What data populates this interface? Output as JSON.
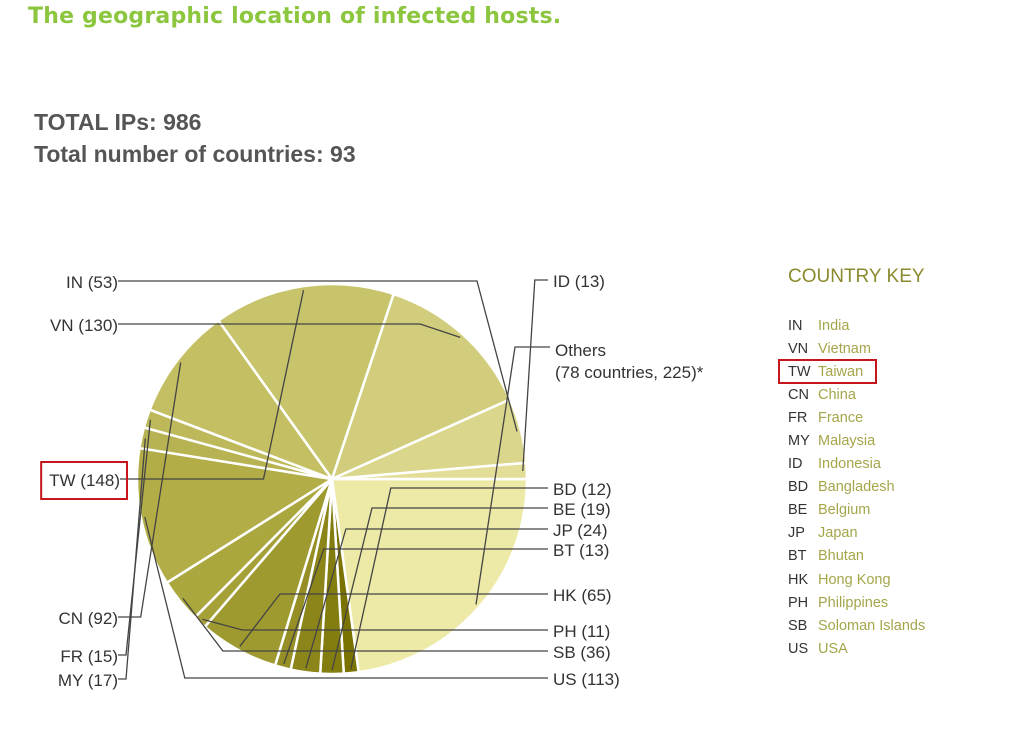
{
  "heading": "The geographic location of infected hosts.",
  "totals": {
    "ips": "TOTAL IPs: 986",
    "countries": "Total number of countries: 93"
  },
  "chart_data": {
    "type": "pie",
    "total": 986,
    "slices": [
      {
        "code": "Others",
        "label": "Others",
        "label2": "(78 countries, 225)*",
        "value": 225,
        "color": "#ede9a7"
      },
      {
        "code": "BD",
        "label": "BD (12)",
        "value": 12,
        "color": "#7a7302"
      },
      {
        "code": "BE",
        "label": "BE (19)",
        "value": 19,
        "color": "#837c0f"
      },
      {
        "code": "JP",
        "label": "JP (24)",
        "value": 24,
        "color": "#8c8519"
      },
      {
        "code": "BT",
        "label": "BT (13)",
        "value": 13,
        "color": "#958f25"
      },
      {
        "code": "HK",
        "label": "HK (65)",
        "value": 65,
        "color": "#9e9a2f"
      },
      {
        "code": "PH",
        "label": "PH (11)",
        "value": 11,
        "color": "#a5a138"
      },
      {
        "code": "SB",
        "label": "SB (36)",
        "value": 36,
        "color": "#aba73f"
      },
      {
        "code": "US",
        "label": "US (113)",
        "value": 113,
        "color": "#b2ad47"
      },
      {
        "code": "MY",
        "label": "MY (17)",
        "value": 17,
        "color": "#b8b352"
      },
      {
        "code": "FR",
        "label": "FR (15)",
        "value": 15,
        "color": "#bdb95b"
      },
      {
        "code": "CN",
        "label": "CN (92)",
        "value": 92,
        "color": "#c3bf62"
      },
      {
        "code": "TW",
        "label": "TW (148)",
        "value": 148,
        "color": "#c8c46c"
      },
      {
        "code": "VN",
        "label": "VN (130)",
        "value": 130,
        "color": "#d1cd7c"
      },
      {
        "code": "IN",
        "label": "IN (53)",
        "value": 53,
        "color": "#dad68b"
      },
      {
        "code": "ID",
        "label": "ID (13)",
        "value": 13,
        "color": "#e3de97"
      }
    ],
    "highlighted": "TW",
    "legend_placement": "right"
  },
  "key": {
    "title": "COUNTRY KEY",
    "items": [
      {
        "code": "IN",
        "name": "India"
      },
      {
        "code": "VN",
        "name": "Vietnam"
      },
      {
        "code": "TW",
        "name": "Taiwan"
      },
      {
        "code": "CN",
        "name": "China"
      },
      {
        "code": "FR",
        "name": "France"
      },
      {
        "code": "MY",
        "name": "Malaysia"
      },
      {
        "code": "ID",
        "name": "Indonesia"
      },
      {
        "code": "BD",
        "name": "Bangladesh"
      },
      {
        "code": "BE",
        "name": "Belgium"
      },
      {
        "code": "JP",
        "name": "Japan"
      },
      {
        "code": "BT",
        "name": "Bhutan"
      },
      {
        "code": "HK",
        "name": "Hong Kong"
      },
      {
        "code": "PH",
        "name": "Philippines"
      },
      {
        "code": "SB",
        "name": "Soloman Islands"
      },
      {
        "code": "US",
        "name": "USA"
      }
    ],
    "highlighted": "TW"
  }
}
